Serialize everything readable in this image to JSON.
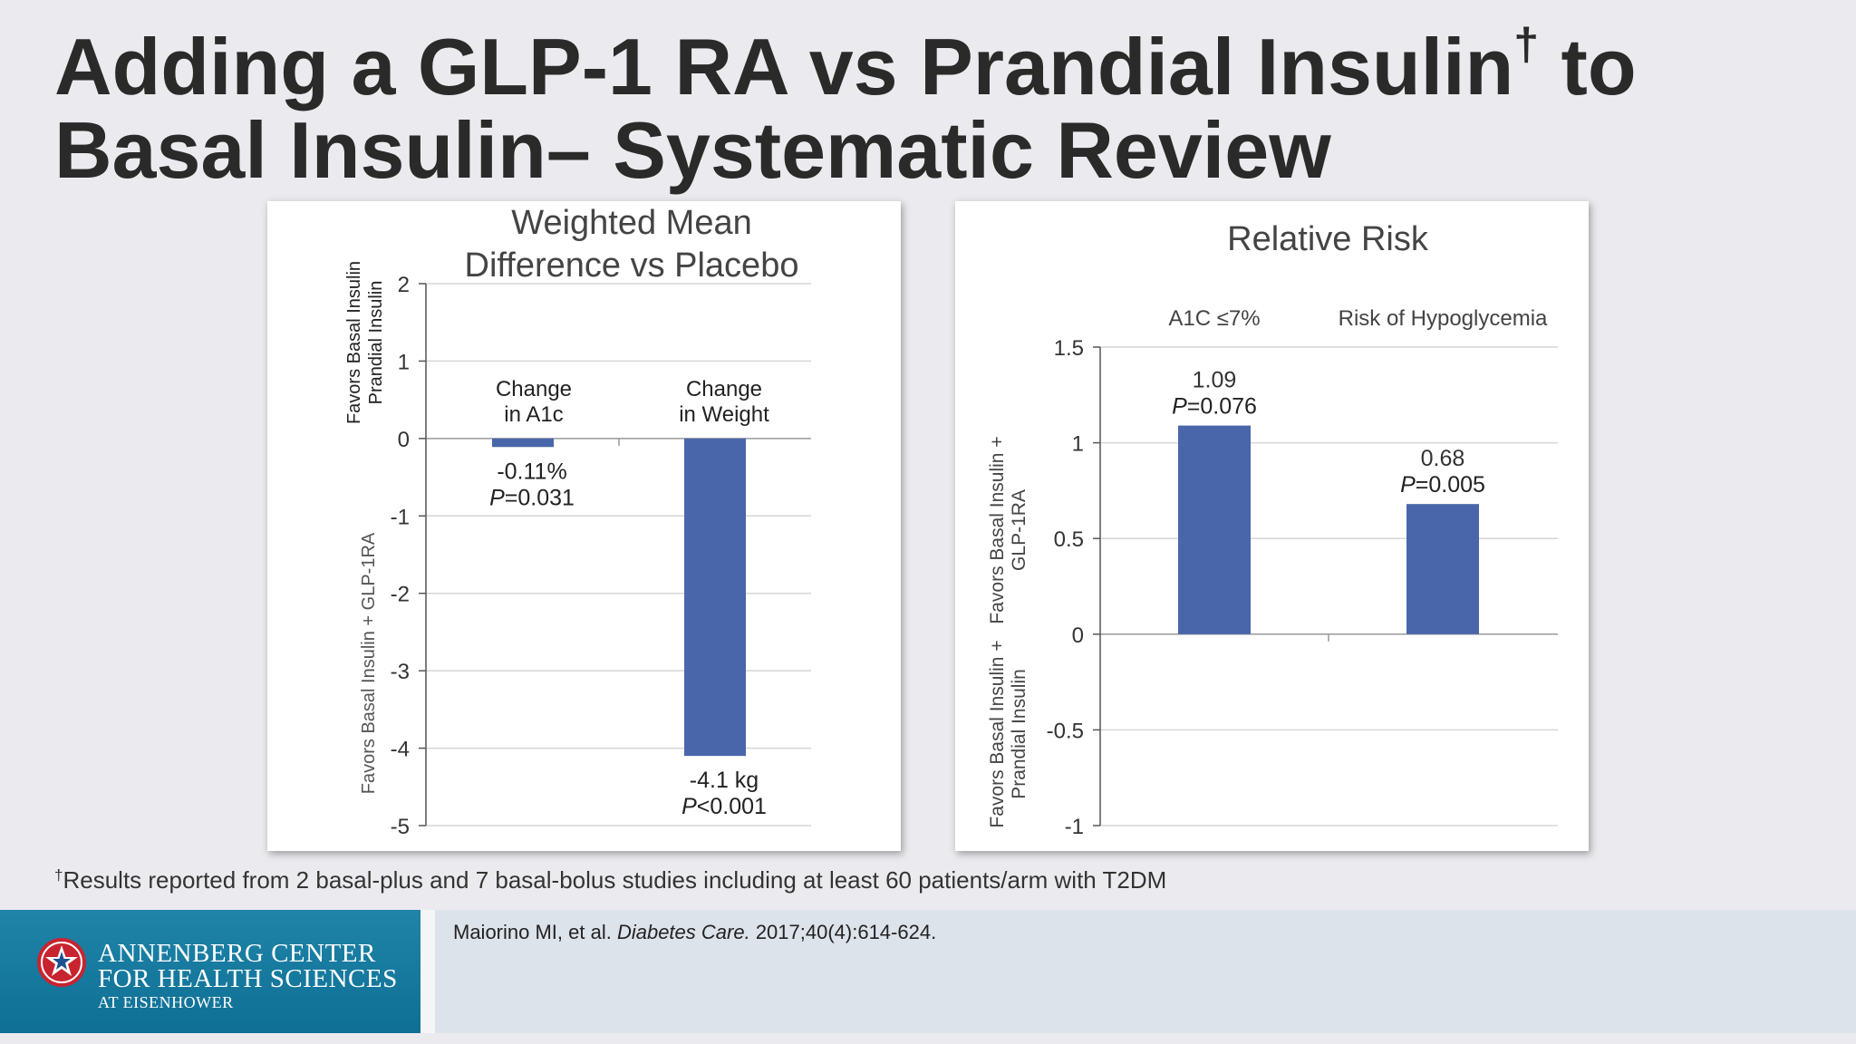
{
  "slide": {
    "title_line1": "Adding a GLP-1 RA vs Prandial Insulin",
    "title_dagger": "†",
    "title_line1_end": " to",
    "title_line2": "Basal Insulin– Systematic Review",
    "footnote_dagger": "†",
    "footnote_text": "Results reported from 2 basal-plus and 7 basal-bolus studies including at least 60 patients/arm with T2DM",
    "citation_authors": "Maiorino MI, et al. ",
    "citation_journal": "Diabetes Care.",
    "citation_rest": " 2017;40(4):614-624."
  },
  "logo": {
    "line1": "ANNENBERG CENTER",
    "line2": "FOR HEALTH SCIENCES",
    "line3": "AT EISENHOWER"
  },
  "colors": {
    "bar": "#4a66ab",
    "grid": "#d6d6d6",
    "axis": "#555555"
  },
  "chart_data": [
    {
      "type": "bar",
      "title": "Weighted Mean Difference vs Placebo",
      "title_lines": [
        "Weighted Mean",
        "Difference vs Placebo"
      ],
      "categories": [
        "Change in A1c",
        "Change in Weight"
      ],
      "category_lines": [
        [
          "Change",
          "in A1c"
        ],
        [
          "Change",
          "in Weight"
        ]
      ],
      "values": [
        -0.11,
        -4.1
      ],
      "value_labels": [
        "-0.11%",
        "-4.1 kg"
      ],
      "p_prefix": [
        "P",
        "P"
      ],
      "p_values": [
        "=0.031",
        "<0.001"
      ],
      "ylim": [
        -5,
        2
      ],
      "yticks": [
        2,
        1,
        0,
        -1,
        -2,
        -3,
        -4,
        -5
      ],
      "ylabel_positive": [
        "Favors Basal Insulin",
        "Prandial Insulin"
      ],
      "ylabel_negative": [
        "Favors Basal Insulin + GLP-1RA"
      ],
      "grid": true
    },
    {
      "type": "bar",
      "title": "Relative Risk",
      "categories": [
        "A1C ≤7%",
        "Risk of Hypoglycemia"
      ],
      "values": [
        1.09,
        0.68
      ],
      "value_labels": [
        "1.09",
        "0.68"
      ],
      "p_prefix": [
        "P",
        "P"
      ],
      "p_values": [
        "=0.076",
        "=0.005"
      ],
      "ylim": [
        -1,
        1.5
      ],
      "yticks": [
        1.5,
        1,
        0.5,
        0,
        -0.5,
        -1
      ],
      "ylabel_positive": [
        "Favors Basal Insulin +",
        "GLP-1RA"
      ],
      "ylabel_negative": [
        "Favors Basal Insulin +",
        "Prandial Insulin"
      ],
      "grid": true
    }
  ]
}
